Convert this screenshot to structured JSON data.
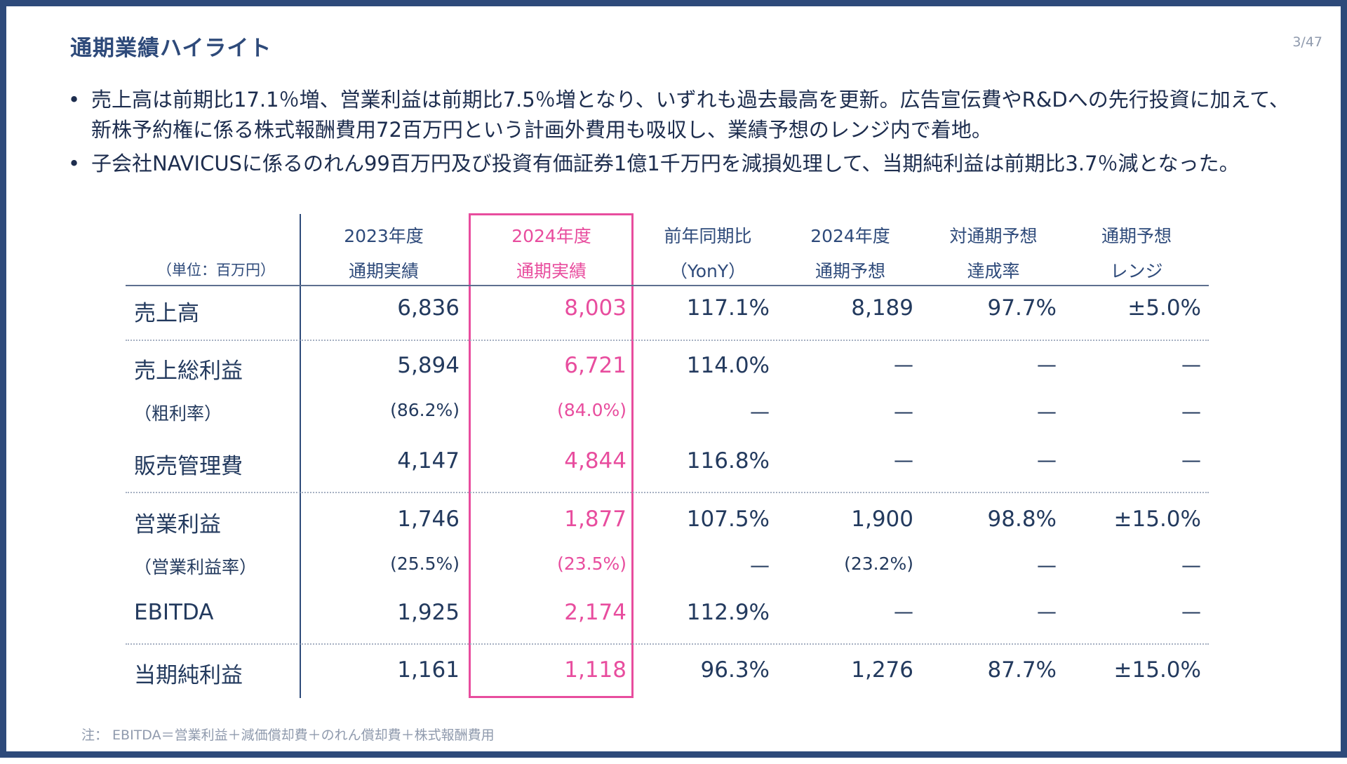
{
  "title": "通期業績ハイライト",
  "page_number": "3/47",
  "bullets": [
    "売上高は前期比17.1％増、営業利益は前期比7.5％増となり、いずれも過去最高を更新。広告宣伝費やR&Dへの先行投資に加えて、新株予約権に係る株式報酬費用72百万円という計画外費用も吸収し、業績予想のレンジ内で着地。",
    "子会社NAVICUSに係るのれん99百万円及び投資有価証券1億1千万円を減損処理して、当期純利益は前期比3.7％減となった。"
  ],
  "bullet_symbol": "•",
  "table": {
    "unit_label": "（単位：百万円）",
    "headers": [
      {
        "line1": "2023年度",
        "line2": "通期実績"
      },
      {
        "line1": "2024年度",
        "line2": "通期実績"
      },
      {
        "line1": "前年同期比",
        "line2": "（YonY）"
      },
      {
        "line1": "2024年度",
        "line2": "通期予想"
      },
      {
        "line1": "対通期予想",
        "line2": "達成率"
      },
      {
        "line1": "通期予想",
        "line2": "レンジ"
      }
    ],
    "rows": [
      {
        "label": "売上高",
        "cells": [
          "6,836",
          "8,003",
          "117.1%",
          "8,189",
          "97.7%",
          "±5.0%"
        ]
      },
      {
        "label": "売上総利益",
        "cells": [
          "5,894",
          "6,721",
          "114.0%",
          "—",
          "—",
          "—"
        ]
      },
      {
        "label": "（粗利率）",
        "cells": [
          "(86.2%)",
          "(84.0%)",
          "—",
          "—",
          "—",
          "—"
        ]
      },
      {
        "label": "販売管理費",
        "cells": [
          "4,147",
          "4,844",
          "116.8%",
          "—",
          "—",
          "—"
        ]
      },
      {
        "label": "営業利益",
        "cells": [
          "1,746",
          "1,877",
          "107.5%",
          "1,900",
          "98.8%",
          "±15.0%"
        ]
      },
      {
        "label": "（営業利益率）",
        "cells": [
          "(25.5%)",
          "(23.5%)",
          "—",
          "(23.2%)",
          "—",
          "—"
        ]
      },
      {
        "label": "EBITDA",
        "cells": [
          "1,925",
          "2,174",
          "112.9%",
          "—",
          "—",
          "—"
        ]
      },
      {
        "label": "当期純利益",
        "cells": [
          "1,161",
          "1,118",
          "96.3%",
          "1,276",
          "87.7%",
          "±15.0%"
        ]
      }
    ]
  },
  "note": "注： EBITDA＝営業利益＋減価償却費＋のれん償却費＋株式報酬費用",
  "colors": {
    "navy": "#2e4a7a",
    "highlight_pink": "#e84d9e",
    "text_dark": "#1d2d4e"
  }
}
